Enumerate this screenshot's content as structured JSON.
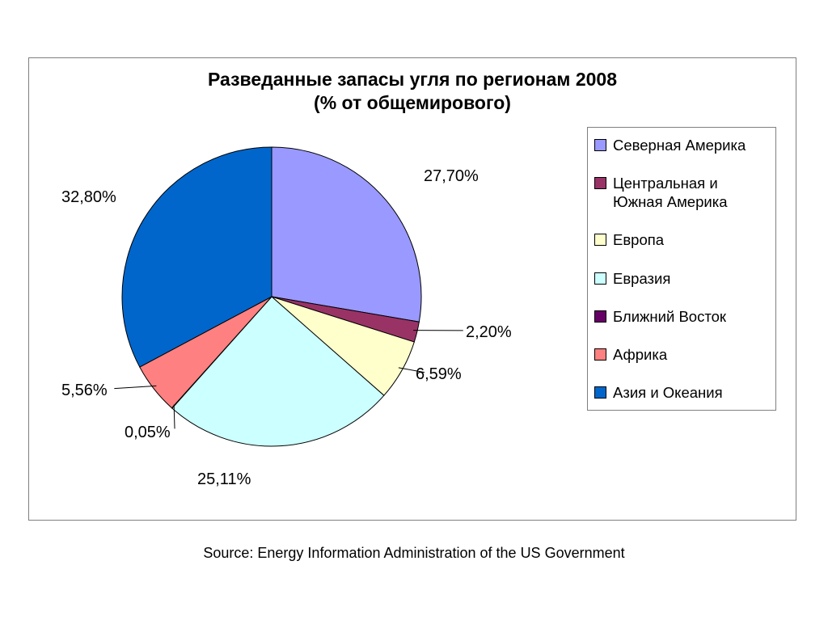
{
  "chart": {
    "type": "pie",
    "title_line1": "Разведанные запасы угля по регионам 2008",
    "title_line2": "(% от общемирового)",
    "title_fontsize": 23,
    "title_fontweight": "bold",
    "background_color": "#ffffff",
    "frame_border_color": "#7f7f7f",
    "legend_border_color": "#808080",
    "label_fontsize": 20,
    "legend_fontsize": 18.5,
    "pie_border_color": "#000000",
    "start_angle_deg": 90,
    "direction": "clockwise",
    "slices": [
      {
        "label": "Северная Америка",
        "value": 27.7,
        "value_label": "27,70%",
        "color": "#9999ff"
      },
      {
        "label": "Центральная и Южная Америка",
        "value": 2.2,
        "value_label": "2,20%",
        "color": "#993366"
      },
      {
        "label": "Европа",
        "value": 6.59,
        "value_label": "6,59%",
        "color": "#ffffcc"
      },
      {
        "label": "Евразия",
        "value": 25.11,
        "value_label": "25,11%",
        "color": "#ccffff"
      },
      {
        "label": "Ближний Восток",
        "value": 0.05,
        "value_label": "0,05%",
        "color": "#660066"
      },
      {
        "label": "Африка",
        "value": 5.56,
        "value_label": "5,56%",
        "color": "#ff8080"
      },
      {
        "label": "Азия и Океания",
        "value": 32.8,
        "value_label": "32,80%",
        "color": "#0066cc"
      }
    ]
  },
  "source_text": "Source: Energy Information Administration of the US Government",
  "source_fontsize": 18
}
